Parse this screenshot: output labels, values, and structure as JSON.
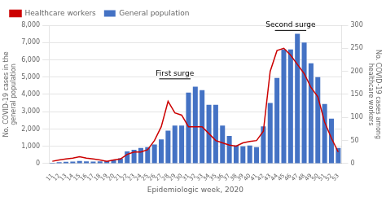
{
  "chart_data": {
    "type": "bar",
    "categories": [
      11,
      12,
      13,
      14,
      15,
      16,
      17,
      18,
      19,
      20,
      21,
      22,
      23,
      24,
      25,
      26,
      27,
      28,
      29,
      30,
      31,
      32,
      33,
      34,
      35,
      36,
      37,
      38,
      39,
      40,
      41,
      42,
      43,
      44,
      45,
      46,
      47,
      48,
      49,
      50,
      51,
      52,
      53
    ],
    "series": [
      {
        "name": "General population",
        "type": "bar",
        "color": "#4472C4",
        "values": [
          50,
          80,
          100,
          120,
          150,
          130,
          120,
          130,
          150,
          200,
          300,
          700,
          800,
          900,
          950,
          1100,
          1400,
          1900,
          2200,
          2200,
          4100,
          4450,
          4250,
          3400,
          3400,
          2200,
          1600,
          1050,
          1000,
          1050,
          950,
          2150,
          3500,
          4950,
          6600,
          6600,
          7500,
          7000,
          5800,
          5000,
          3450,
          2600,
          900
        ]
      },
      {
        "name": "Healthcare workers",
        "type": "line",
        "color": "#CC0000",
        "axis": "y2",
        "values": [
          5,
          8,
          10,
          12,
          15,
          12,
          10,
          8,
          5,
          8,
          10,
          20,
          25,
          25,
          30,
          50,
          80,
          135,
          110,
          105,
          80,
          80,
          80,
          65,
          50,
          45,
          40,
          38,
          45,
          48,
          50,
          70,
          200,
          245,
          250,
          235,
          215,
          195,
          165,
          145,
          90,
          55,
          25
        ]
      }
    ],
    "xlabel": "Epidemiologic week, 2020",
    "ylabel": "No. COVID-19 cases in the\ngeneral population",
    "y2label": "No. COVID-19 cases among\nhealthcare workers",
    "ylim": [
      0,
      8000
    ],
    "yticks": [
      0,
      {
        "value": 1000,
        "label": "1,000"
      },
      {
        "value": 2000,
        "label": "2,000"
      },
      {
        "value": 3000,
        "label": "3,000"
      },
      {
        "value": 4000,
        "label": "4,000"
      },
      {
        "value": 5000,
        "label": "5,000"
      },
      {
        "value": 6000,
        "label": "6,000"
      },
      {
        "value": 7000,
        "label": "7,000"
      },
      {
        "value": 8000,
        "label": "8,000"
      }
    ],
    "y2lim": [
      0,
      300
    ],
    "y2ticks": [
      0,
      50,
      100,
      150,
      200,
      250,
      300
    ],
    "grid": true,
    "legend": "upper left",
    "annotations": [
      {
        "text": "First surge",
        "x_range": [
          27,
          31
        ],
        "y": 4900
      },
      {
        "text": "Second surge",
        "x_range": [
          44,
          48
        ],
        "y": 7700
      }
    ]
  }
}
